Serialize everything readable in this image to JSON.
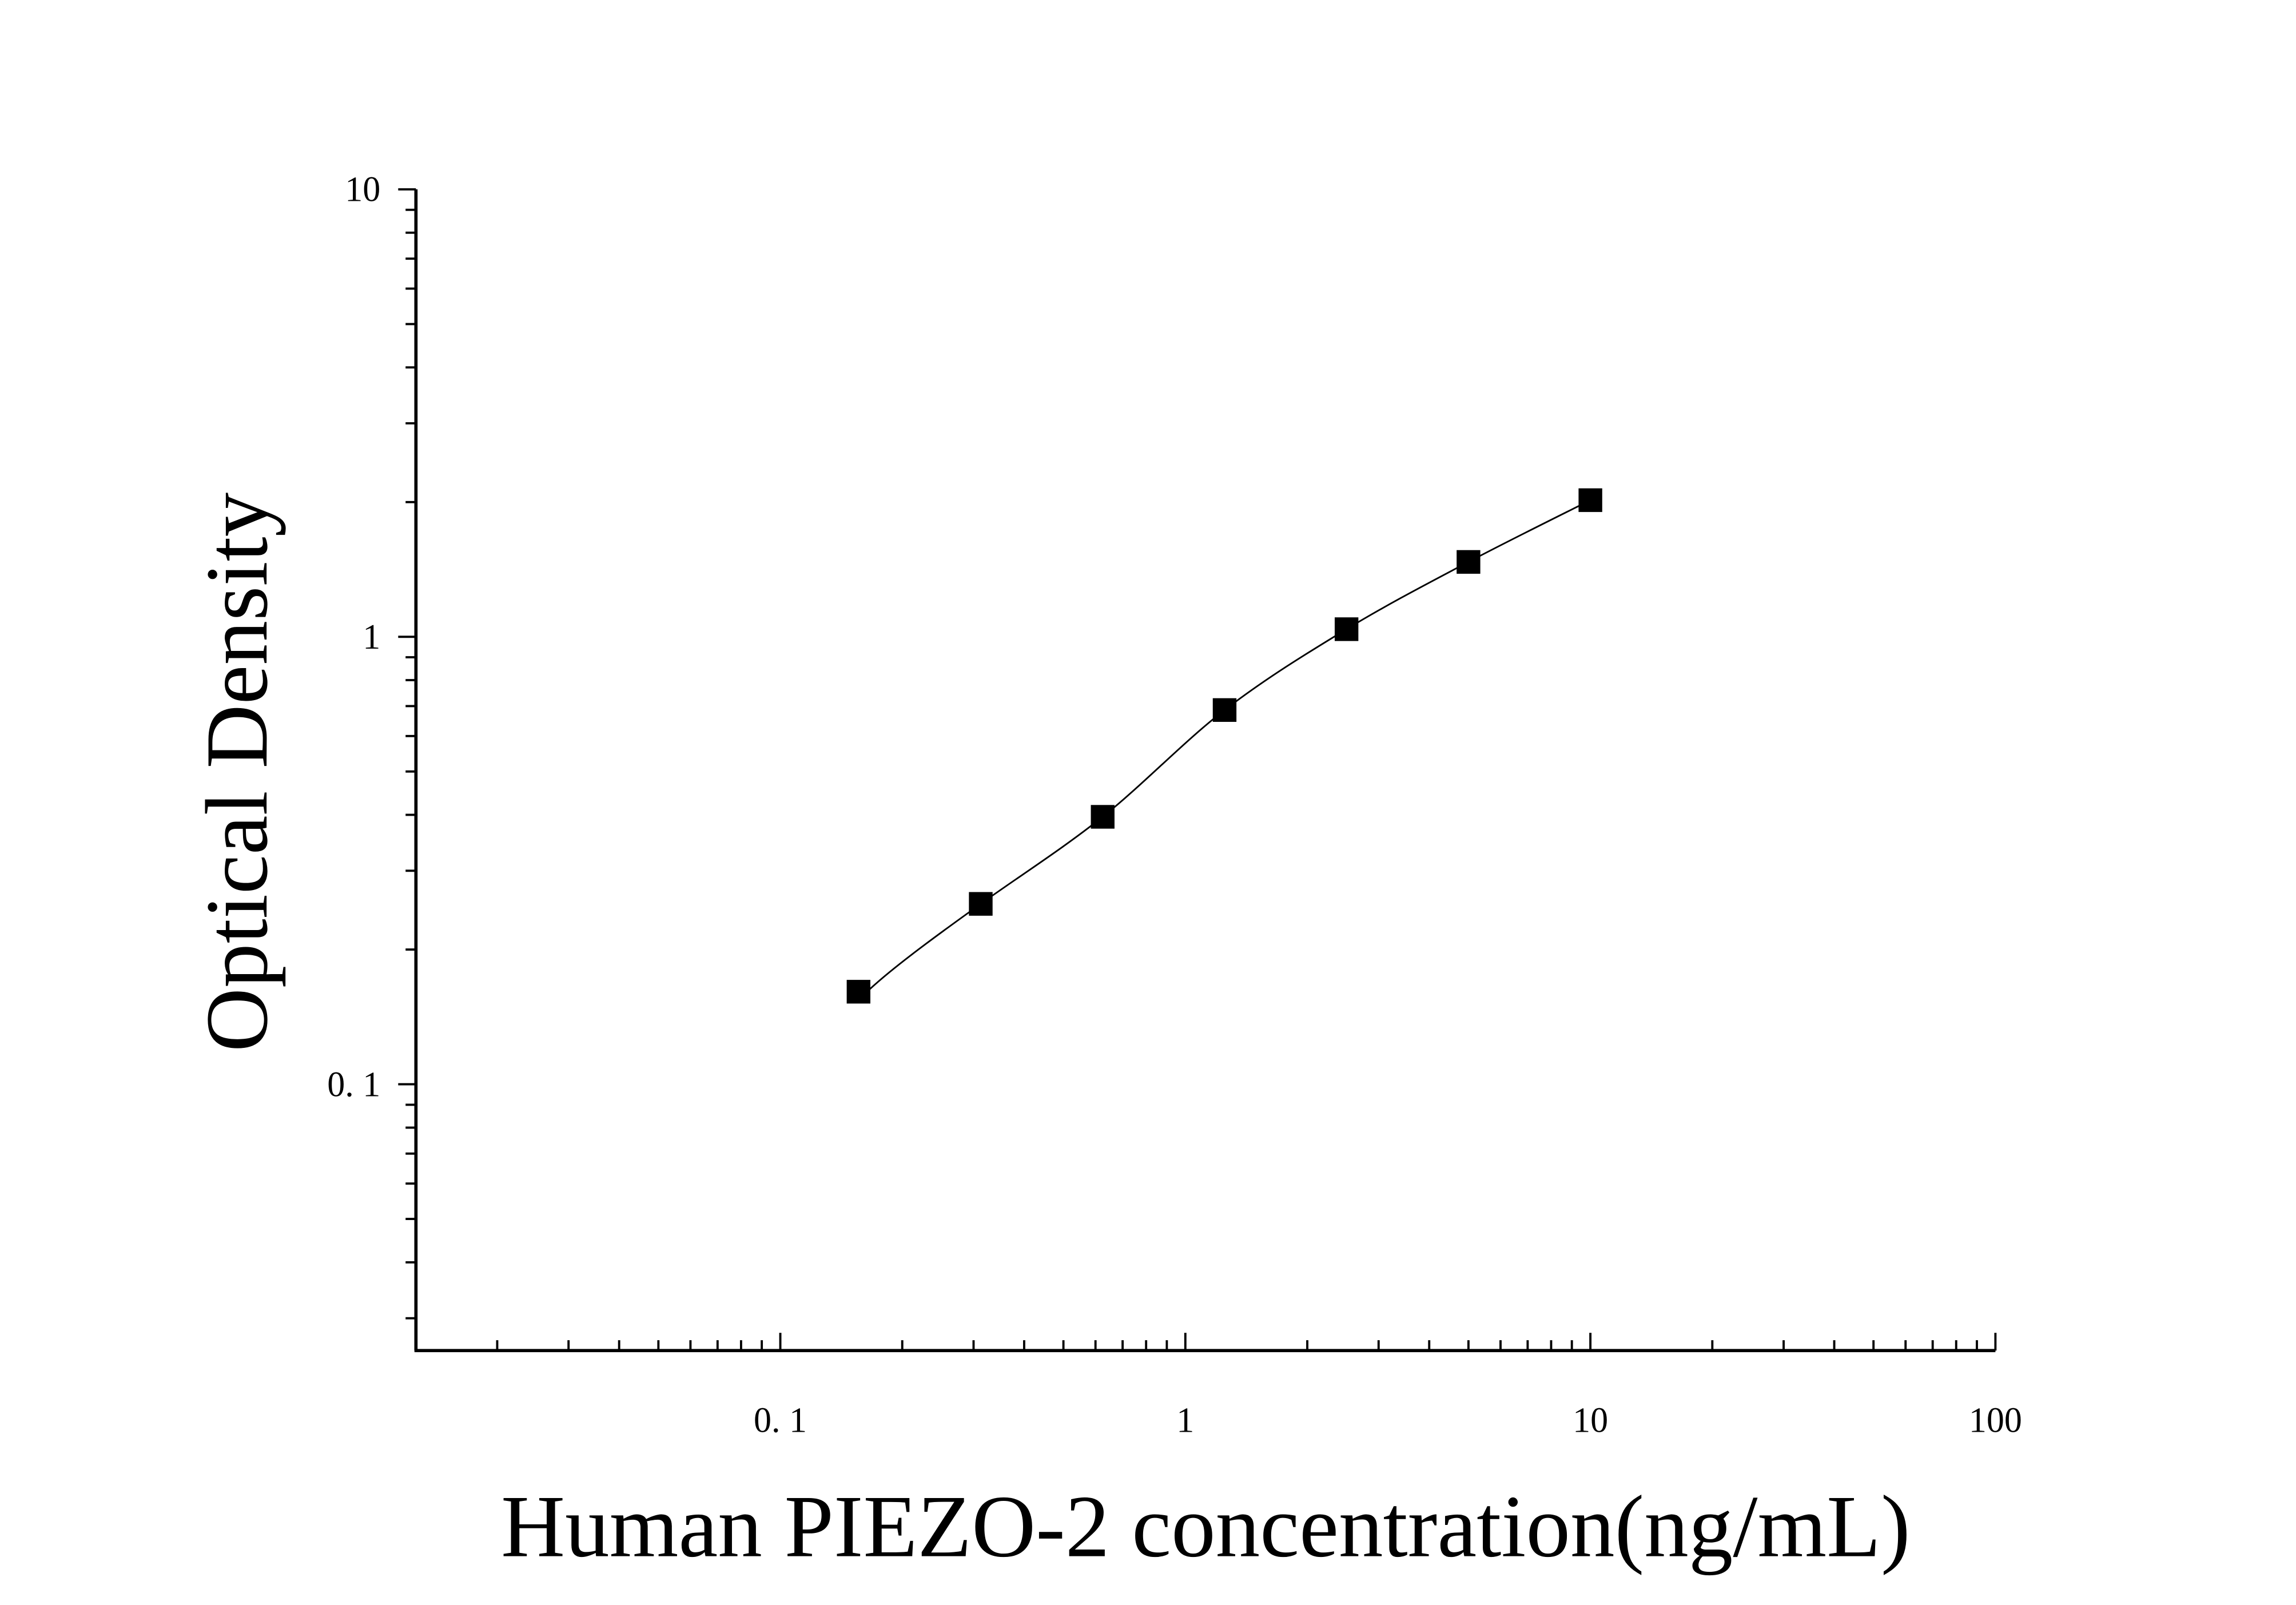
{
  "chart_data": {
    "type": "scatter",
    "title": "",
    "xlabel": "Human PIEZO-2 concentration(ng/mL)",
    "ylabel": "Optical Density",
    "x_scale": "log",
    "y_scale": "log",
    "xlim": [
      0.0126,
      100
    ],
    "ylim": [
      0.0254,
      10
    ],
    "x_ticks": [
      {
        "value": 0.1,
        "label": "0. 1"
      },
      {
        "value": 1,
        "label": "1"
      },
      {
        "value": 10,
        "label": "10"
      },
      {
        "value": 100,
        "label": "100"
      }
    ],
    "y_ticks": [
      {
        "value": 0.1,
        "label": "0. 1"
      },
      {
        "value": 1,
        "label": "1"
      },
      {
        "value": 10,
        "label": "10"
      }
    ],
    "grid": false,
    "marker": "square",
    "fit_line": true,
    "color": "#000000",
    "series": [
      {
        "x": [
          0.156,
          0.3125,
          0.625,
          1.25,
          2.5,
          5,
          10
        ],
        "y": [
          0.161,
          0.253,
          0.396,
          0.686,
          1.04,
          1.47,
          2.02
        ]
      }
    ]
  }
}
